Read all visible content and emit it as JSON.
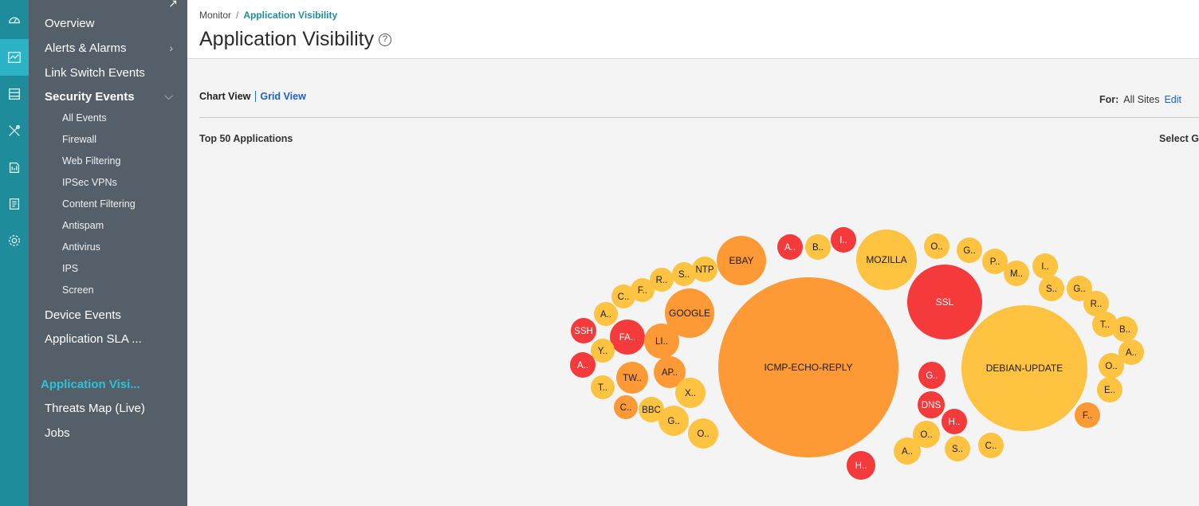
{
  "nav": {
    "items": {
      "overview": "Overview",
      "alerts": "Alerts & Alarms",
      "link_switch": "Link Switch Events",
      "security": "Security Events",
      "device": "Device Events",
      "app_sla": "Application SLA ...",
      "app_vis": "Application Visi...",
      "threats": "Threats Map (Live)",
      "jobs": "Jobs"
    },
    "security_sub": [
      "All Events",
      "Firewall",
      "Web Filtering",
      "IPSec VPNs",
      "Content Filtering",
      "Antispam",
      "Antivirus",
      "IPS",
      "Screen"
    ]
  },
  "header": {
    "breadcrumb_root": "Monitor",
    "breadcrumb_sep": "/",
    "breadcrumb_current": "Application Visibility",
    "title": "Application Visibility",
    "help": "?"
  },
  "toolbar": {
    "chart_view": "Chart View",
    "grid_view": "Grid View",
    "for_label": "For:",
    "for_value": "All Sites",
    "edit": "Edit"
  },
  "section": {
    "title": "Top 50 Applications",
    "select_group": "Select Gr"
  },
  "colors": {
    "red": "#f43a3a",
    "orange": "#fd9a35",
    "yellow": "#fdc341"
  },
  "bubbles": [
    {
      "label": "ICMP-ECHO-REPLY",
      "level": "orange"
    },
    {
      "label": "DEBIAN-UPDATE",
      "level": "yellow"
    },
    {
      "label": "SSL",
      "level": "red"
    },
    {
      "label": "MOZILLA",
      "level": "yellow"
    },
    {
      "label": "EBAY",
      "level": "orange"
    },
    {
      "label": "GOOGLE",
      "level": "orange"
    },
    {
      "label": "NTP",
      "level": "yellow"
    },
    {
      "label": "S..",
      "level": "yellow"
    },
    {
      "label": "R..",
      "level": "yellow"
    },
    {
      "label": "F..",
      "level": "yellow"
    },
    {
      "label": "C..",
      "level": "yellow"
    },
    {
      "label": "A..",
      "level": "yellow"
    },
    {
      "label": "SSH",
      "level": "red"
    },
    {
      "label": "FA..",
      "level": "red"
    },
    {
      "label": "LI..",
      "level": "orange"
    },
    {
      "label": "Y..",
      "level": "yellow"
    },
    {
      "label": "A..",
      "level": "red"
    },
    {
      "label": "TW..",
      "level": "orange"
    },
    {
      "label": "AP..",
      "level": "orange"
    },
    {
      "label": "T..",
      "level": "yellow"
    },
    {
      "label": "X..",
      "level": "yellow"
    },
    {
      "label": "C..",
      "level": "orange"
    },
    {
      "label": "BBC",
      "level": "yellow"
    },
    {
      "label": "G..",
      "level": "yellow"
    },
    {
      "label": "O..",
      "level": "yellow"
    },
    {
      "label": "A..",
      "level": "red"
    },
    {
      "label": "B..",
      "level": "yellow"
    },
    {
      "label": "I..",
      "level": "red"
    },
    {
      "label": "O..",
      "level": "yellow"
    },
    {
      "label": "G..",
      "level": "yellow"
    },
    {
      "label": "P..",
      "level": "yellow"
    },
    {
      "label": "M..",
      "level": "yellow"
    },
    {
      "label": "I..",
      "level": "yellow"
    },
    {
      "label": "S..",
      "level": "yellow"
    },
    {
      "label": "G..",
      "level": "yellow"
    },
    {
      "label": "R..",
      "level": "yellow"
    },
    {
      "label": "T..",
      "level": "yellow"
    },
    {
      "label": "B..",
      "level": "yellow"
    },
    {
      "label": "A..",
      "level": "yellow"
    },
    {
      "label": "O..",
      "level": "yellow"
    },
    {
      "label": "E..",
      "level": "yellow"
    },
    {
      "label": "F..",
      "level": "orange"
    },
    {
      "label": "G..",
      "level": "red"
    },
    {
      "label": "DNS",
      "level": "red"
    },
    {
      "label": "H..",
      "level": "red"
    },
    {
      "label": "O..",
      "level": "yellow"
    },
    {
      "label": "A..",
      "level": "yellow"
    },
    {
      "label": "S..",
      "level": "yellow"
    },
    {
      "label": "C..",
      "level": "yellow"
    },
    {
      "label": "H..",
      "level": "red"
    }
  ]
}
